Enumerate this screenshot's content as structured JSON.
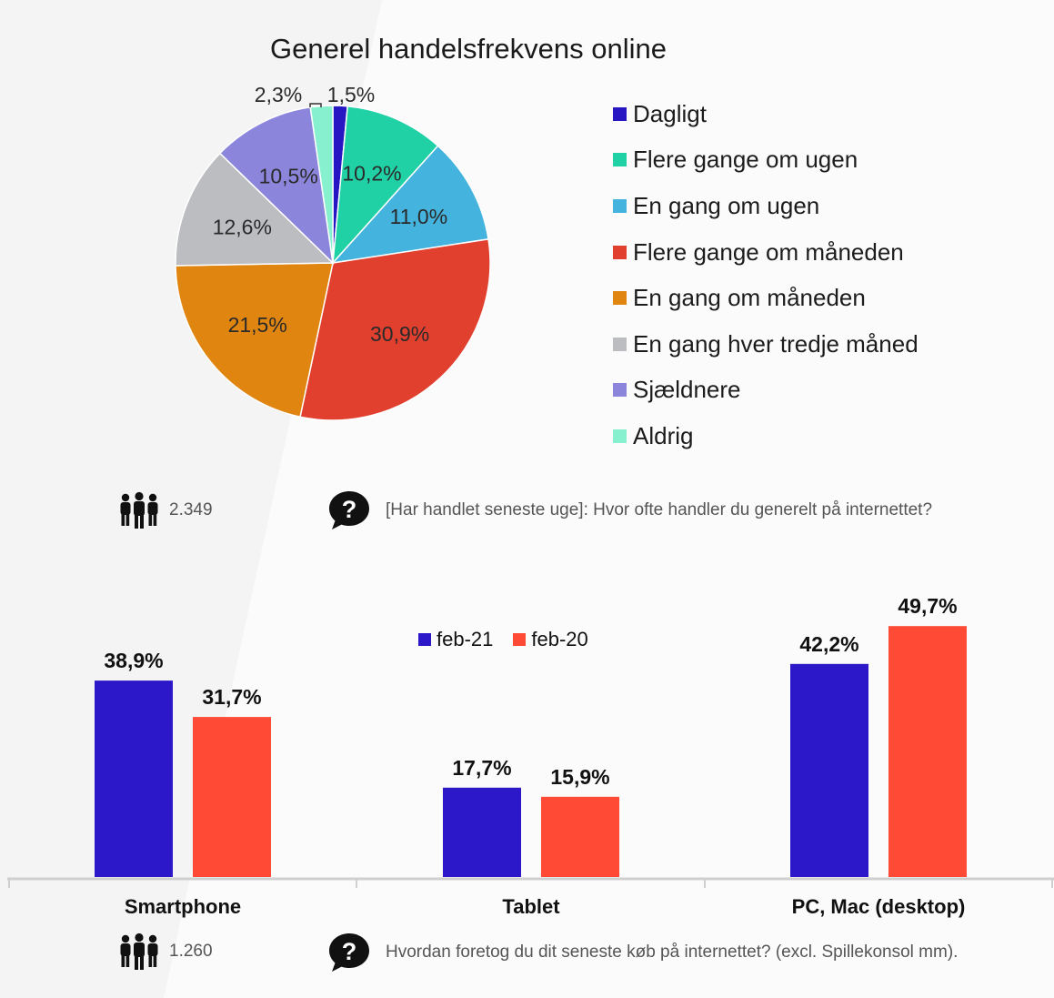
{
  "colors": {
    "background": "#f4f4f4",
    "background_light": "#ffffff",
    "blue": "#2c17c9",
    "red": "#ff4a35"
  },
  "pie": {
    "title": "Generel handelsfrekvens online",
    "respondents": "2.349",
    "question": "[Har handlet seneste uge]: Hvor ofte handler du generelt på internettet?"
  },
  "bars": {
    "respondents": "1.260",
    "question": "Hvordan foretog du dit seneste køb på internettet? (excl. Spillekonsol mm)."
  },
  "chart_data": [
    {
      "type": "pie",
      "title": "Generel handelsfrekvens online",
      "slices": [
        {
          "label": "Dagligt",
          "value": 1.5,
          "display": "1,5%",
          "color": "#2617c2"
        },
        {
          "label": "Flere gange om ugen",
          "value": 10.2,
          "display": "10,2%",
          "color": "#21d1a6"
        },
        {
          "label": "En gang om ugen",
          "value": 11.0,
          "display": "11,0%",
          "color": "#44b3de"
        },
        {
          "label": "Flere gange om måneden",
          "value": 30.9,
          "display": "30,9%",
          "color": "#e2402f"
        },
        {
          "label": "En gang om måneden",
          "value": 21.5,
          "display": "21,5%",
          "color": "#e0850f"
        },
        {
          "label": "En gang hver tredje måned",
          "value": 12.6,
          "display": "12,6%",
          "color": "#bbbdc1"
        },
        {
          "label": "Sjældnere",
          "value": 10.5,
          "display": "10,5%",
          "color": "#8b86dc"
        },
        {
          "label": "Aldrig",
          "value": 2.3,
          "display": "2,3%",
          "color": "#86f0cf"
        }
      ],
      "legend_position": "right"
    },
    {
      "type": "bar",
      "categories": [
        "Smartphone",
        "Tablet",
        "PC, Mac (desktop)"
      ],
      "series": [
        {
          "name": "feb-21",
          "values": [
            38.9,
            17.7,
            42.2
          ],
          "labels": [
            "38,9%",
            "17,7%",
            "42,2%"
          ],
          "color": "#2c17c9"
        },
        {
          "name": "feb-20",
          "values": [
            31.7,
            15.9,
            49.7
          ],
          "labels": [
            "31,7%",
            "15,9%",
            "49,7%"
          ],
          "color": "#ff4a35"
        }
      ],
      "legend_position": "top-center",
      "grid": false
    }
  ]
}
